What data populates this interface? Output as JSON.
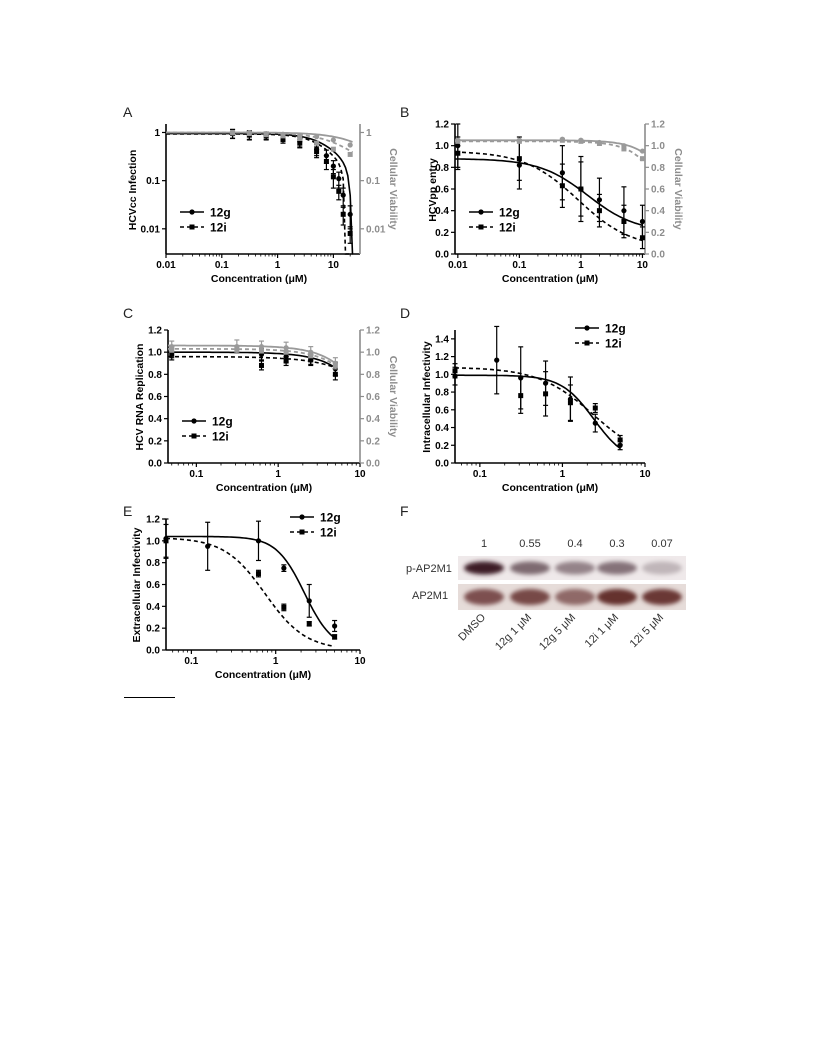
{
  "panel_letters": [
    "A",
    "B",
    "C",
    "D",
    "E",
    "F"
  ],
  "chart_data": [
    {
      "panel": "A",
      "type": "line",
      "xlabel": "Concentration (μM)",
      "ylabel": "HCVcc Infection",
      "y2label": "Cellular Viability",
      "xscale": "log",
      "yscale": "log",
      "y2scale": "log",
      "xlim": [
        0.01,
        30
      ],
      "ylim": [
        0.003,
        1.5
      ],
      "y2lim": [
        0.003,
        1.5
      ],
      "xticks": [
        "0.01",
        "0.1",
        "1",
        "10",
        "100"
      ],
      "yticks": [
        "0.01",
        "0.1",
        "1"
      ],
      "y2ticks": [
        "0.01",
        "0.1",
        "1"
      ],
      "legend": {
        "placement": "bottom-left",
        "entries": [
          "12g",
          "12i"
        ]
      },
      "colors": {
        "12g": "#000000",
        "12i": "#000000",
        "viability": "#999999"
      },
      "series": [
        {
          "name": "12g",
          "style": "solid",
          "axis": "left",
          "x": [
            0.156,
            0.312,
            0.625,
            1.25,
            2.5,
            5,
            7.5,
            10,
            12.5,
            15,
            20
          ],
          "y": [
            0.96,
            0.9,
            0.87,
            0.8,
            0.65,
            0.45,
            0.33,
            0.2,
            0.11,
            0.05,
            0.02
          ],
          "err": [
            0.2,
            0.18,
            0.15,
            0.15,
            0.15,
            0.12,
            0.1,
            0.06,
            0.04,
            0.02,
            0.01
          ]
        },
        {
          "name": "12i",
          "style": "dashed",
          "axis": "left",
          "x": [
            0.156,
            0.312,
            0.625,
            1.25,
            2.5,
            5,
            7.5,
            10,
            12.5,
            15,
            20
          ],
          "y": [
            0.95,
            0.88,
            0.85,
            0.75,
            0.6,
            0.4,
            0.25,
            0.12,
            0.06,
            0.02,
            0.008
          ],
          "err": [
            0.2,
            0.18,
            0.15,
            0.15,
            0.12,
            0.1,
            0.08,
            0.05,
            0.02,
            0.008,
            0.003
          ]
        },
        {
          "name": "",
          "style": "solid",
          "axis": "right",
          "color": "gray",
          "x": [
            0.156,
            0.312,
            0.625,
            1.25,
            2.5,
            5,
            10,
            20
          ],
          "y": [
            1.0,
            0.98,
            0.95,
            0.92,
            0.88,
            0.82,
            0.7,
            0.55
          ]
        },
        {
          "name": "",
          "style": "dashed",
          "axis": "right",
          "color": "gray",
          "x": [
            0.156,
            0.312,
            0.625,
            1.25,
            2.5,
            5,
            10,
            20
          ],
          "y": [
            0.98,
            0.95,
            0.9,
            0.85,
            0.75,
            0.6,
            0.45,
            0.35
          ]
        }
      ]
    },
    {
      "panel": "B",
      "type": "line",
      "xlabel": "Concentration (μM)",
      "ylabel": "HCVpp entry",
      "y2label": "Cellular Viability",
      "xscale": "log",
      "xlim": [
        0.009,
        11
      ],
      "ylim": [
        0,
        1.2
      ],
      "y2lim": [
        0,
        1.2
      ],
      "xticks": [
        "0.01",
        "0.1",
        "1",
        "10"
      ],
      "yticks": [
        "0.0",
        "0.2",
        "0.4",
        "0.6",
        "0.8",
        "1.0",
        "1.2"
      ],
      "y2ticks": [
        "0.0",
        "0.2",
        "0.4",
        "0.6",
        "0.8",
        "1.0",
        "1.2"
      ],
      "legend": {
        "placement": "bottom-left",
        "entries": [
          "12g",
          "12i"
        ]
      },
      "series": [
        {
          "name": "12g",
          "style": "solid",
          "axis": "left",
          "x": [
            0.01,
            0.1,
            0.5,
            1,
            2,
            5,
            10
          ],
          "y": [
            1.0,
            0.82,
            0.75,
            0.6,
            0.5,
            0.4,
            0.3
          ],
          "err": [
            0.2,
            0.22,
            0.25,
            0.3,
            0.2,
            0.22,
            0.15
          ]
        },
        {
          "name": "12i",
          "style": "dashed",
          "axis": "left",
          "x": [
            0.01,
            0.1,
            0.5,
            1,
            2,
            5,
            10
          ],
          "y": [
            0.93,
            0.88,
            0.63,
            0.6,
            0.4,
            0.3,
            0.15
          ],
          "err": [
            0.15,
            0.2,
            0.2,
            0.25,
            0.15,
            0.15,
            0.1
          ]
        },
        {
          "name": "",
          "style": "solid",
          "axis": "right",
          "color": "gray",
          "x": [
            0.01,
            0.1,
            0.5,
            1,
            2,
            5,
            10
          ],
          "y": [
            1.05,
            1.05,
            1.06,
            1.05,
            1.03,
            1.0,
            0.95
          ]
        },
        {
          "name": "",
          "style": "dashed",
          "axis": "right",
          "color": "gray",
          "x": [
            0.01,
            0.1,
            0.5,
            1,
            2,
            5,
            10
          ],
          "y": [
            1.04,
            1.04,
            1.05,
            1.04,
            1.02,
            0.97,
            0.88
          ]
        }
      ]
    },
    {
      "panel": "C",
      "type": "line",
      "xlabel": "Concentration (μM)",
      "ylabel": "HCV RNA Replication",
      "y2label": "Cellular Viability",
      "xscale": "log",
      "xlim": [
        0.045,
        10
      ],
      "ylim": [
        0,
        1.2
      ],
      "y2lim": [
        0,
        1.2
      ],
      "xticks": [
        "0.1",
        "1",
        "10"
      ],
      "yticks": [
        "0.0",
        "0.2",
        "0.4",
        "0.6",
        "0.8",
        "1.0",
        "1.2"
      ],
      "y2ticks": [
        "0.0",
        "0.2",
        "0.4",
        "0.6",
        "0.8",
        "1.0",
        "1.2"
      ],
      "legend": {
        "placement": "bottom-left",
        "entries": [
          "12g",
          "12i"
        ]
      },
      "series": [
        {
          "name": "12g",
          "style": "solid",
          "axis": "left",
          "x": [
            0.05,
            0.625,
            1.25,
            2.5,
            5
          ],
          "y": [
            1.0,
            0.98,
            0.96,
            0.93,
            0.85
          ],
          "err": [
            0.05,
            0.05,
            0.05,
            0.05,
            0.06
          ]
        },
        {
          "name": "12i",
          "style": "dashed",
          "axis": "left",
          "x": [
            0.05,
            0.625,
            1.25,
            2.5,
            5
          ],
          "y": [
            0.98,
            0.88,
            0.92,
            0.93,
            0.8
          ],
          "err": [
            0.05,
            0.04,
            0.04,
            0.04,
            0.05
          ]
        },
        {
          "name": "",
          "style": "solid",
          "axis": "right",
          "color": "gray",
          "x": [
            0.05,
            0.3125,
            0.625,
            1.25,
            2.5,
            5
          ],
          "y": [
            1.05,
            1.05,
            1.05,
            1.04,
            1.0,
            0.9
          ],
          "err": [
            0.05,
            0.06,
            0.05,
            0.05,
            0.05,
            0.05
          ]
        },
        {
          "name": "",
          "style": "dashed",
          "axis": "right",
          "color": "gray",
          "x": [
            0.05,
            0.3125,
            0.625,
            1.25,
            2.5,
            5
          ],
          "y": [
            1.02,
            1.02,
            1.01,
            1.0,
            0.97,
            0.88
          ]
        }
      ]
    },
    {
      "panel": "D",
      "type": "line",
      "xlabel": "Concentration (μM)",
      "ylabel": "Intracellular Infectivity",
      "xscale": "log",
      "xlim": [
        0.05,
        10
      ],
      "ylim": [
        0,
        1.5
      ],
      "xticks": [
        "0.1",
        "1",
        "10"
      ],
      "yticks": [
        "0.0",
        "0.2",
        "0.4",
        "0.6",
        "0.8",
        "1.0",
        "1.2",
        "1.4"
      ],
      "legend": {
        "placement": "top-right",
        "entries": [
          "12g",
          "12i"
        ]
      },
      "series": [
        {
          "name": "12g",
          "style": "solid",
          "x": [
            0.05,
            0.16,
            0.3125,
            0.625,
            1.25,
            2.5,
            5
          ],
          "y": [
            0.98,
            1.16,
            0.96,
            0.9,
            0.72,
            0.45,
            0.2
          ],
          "err": [
            0.1,
            0.38,
            0.35,
            0.25,
            0.25,
            0.1,
            0.05
          ]
        },
        {
          "name": "12i",
          "style": "dashed",
          "x": [
            0.05,
            0.3125,
            0.625,
            1.25,
            2.5,
            5
          ],
          "y": [
            1.04,
            0.76,
            0.78,
            0.68,
            0.62,
            0.26
          ],
          "err": [
            0.08,
            0.2,
            0.25,
            0.2,
            0.05,
            0.05
          ]
        }
      ]
    },
    {
      "panel": "E",
      "type": "line",
      "xlabel": "Concentration (μM)",
      "ylabel": "Extracellular Infectivity",
      "xscale": "log",
      "xlim": [
        0.05,
        10
      ],
      "ylim": [
        0,
        1.2
      ],
      "xticks": [
        "0.1",
        "1",
        "10"
      ],
      "yticks": [
        "0.0",
        "0.2",
        "0.4",
        "0.6",
        "0.8",
        "1.0",
        "1.2"
      ],
      "legend": {
        "placement": "top-right",
        "entries": [
          "12g",
          "12i"
        ]
      },
      "series": [
        {
          "name": "12g",
          "style": "solid",
          "x": [
            0.05,
            0.156,
            0.625,
            1.25,
            2.5,
            5
          ],
          "y": [
            1.02,
            0.95,
            1.0,
            0.75,
            0.45,
            0.22
          ],
          "err": [
            0.18,
            0.22,
            0.18,
            0.03,
            0.15,
            0.05
          ]
        },
        {
          "name": "12i",
          "style": "dashed",
          "x": [
            0.05,
            0.625,
            1.25,
            2.5,
            5
          ],
          "y": [
            1.0,
            0.7,
            0.39,
            0.24,
            0.12
          ],
          "err": [
            0.15,
            0.03,
            0.03,
            0.02,
            0.02
          ]
        }
      ]
    }
  ],
  "western_blot": {
    "panel": "F",
    "ratios": [
      "1",
      "0.55",
      "0.4",
      "0.3",
      "0.07"
    ],
    "rows": [
      "p-AP2M1",
      "AP2M1"
    ],
    "lanes": [
      "DMSO",
      "12g 1 μM",
      "12g 5 μM",
      "12i 1 μM",
      "12i 5 μM"
    ],
    "band_intensity": {
      "p-AP2M1": [
        1.0,
        0.55,
        0.4,
        0.5,
        0.1
      ],
      "AP2M1": [
        0.75,
        0.8,
        0.6,
        0.95,
        0.9
      ]
    }
  }
}
